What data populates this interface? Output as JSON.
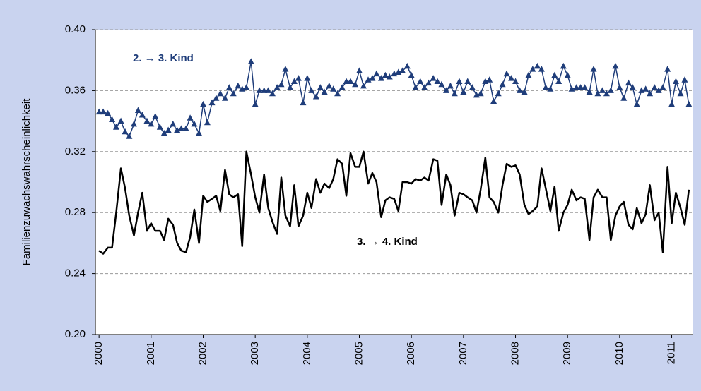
{
  "chart_data": {
    "type": "line",
    "y_label": "Familienzuwachswahrscheinlichkeit",
    "annotations": [
      "2. → 3. Kind",
      "3. → 4. Kind"
    ],
    "xlim": [
      1999.93,
      2011.4
    ],
    "xticks": [
      2000,
      2001,
      2002,
      2003,
      2004,
      2005,
      2006,
      2007,
      2008,
      2009,
      2010,
      2011
    ],
    "ylim": [
      0.2,
      0.4
    ],
    "yticks": [
      {
        "value": 0.2,
        "label": "0.20"
      },
      {
        "value": 0.24,
        "label": "0.24"
      },
      {
        "value": 0.28,
        "label": "0.28"
      },
      {
        "value": 0.32,
        "label": "0.32"
      },
      {
        "value": 0.36,
        "label": "0.36"
      },
      {
        "value": 0.4,
        "label": "0.40"
      }
    ],
    "grid": true,
    "x": [
      2000,
      2000.08,
      2000.17,
      2000.25,
      2000.33,
      2000.42,
      2000.5,
      2000.58,
      2000.67,
      2000.75,
      2000.83,
      2000.92,
      2001,
      2001.08,
      2001.17,
      2001.25,
      2001.33,
      2001.42,
      2001.5,
      2001.58,
      2001.67,
      2001.75,
      2001.83,
      2001.92,
      2002,
      2002.08,
      2002.17,
      2002.25,
      2002.33,
      2002.42,
      2002.5,
      2002.58,
      2002.67,
      2002.75,
      2002.83,
      2002.92,
      2003,
      2003.08,
      2003.17,
      2003.25,
      2003.33,
      2003.42,
      2003.5,
      2003.58,
      2003.67,
      2003.75,
      2003.83,
      2003.92,
      2004,
      2004.08,
      2004.17,
      2004.25,
      2004.33,
      2004.42,
      2004.5,
      2004.58,
      2004.67,
      2004.75,
      2004.83,
      2004.92,
      2005,
      2005.08,
      2005.17,
      2005.25,
      2005.33,
      2005.42,
      2005.5,
      2005.58,
      2005.67,
      2005.75,
      2005.83,
      2005.92,
      2006,
      2006.08,
      2006.17,
      2006.25,
      2006.33,
      2006.42,
      2006.5,
      2006.58,
      2006.67,
      2006.75,
      2006.83,
      2006.92,
      2007,
      2007.08,
      2007.17,
      2007.25,
      2007.33,
      2007.42,
      2007.5,
      2007.58,
      2007.67,
      2007.75,
      2007.83,
      2007.92,
      2008,
      2008.08,
      2008.17,
      2008.25,
      2008.33,
      2008.42,
      2008.5,
      2008.58,
      2008.67,
      2008.75,
      2008.83,
      2008.92,
      2009,
      2009.08,
      2009.17,
      2009.25,
      2009.33,
      2009.42,
      2009.5,
      2009.58,
      2009.67,
      2009.75,
      2009.83,
      2009.92,
      2010,
      2010.08,
      2010.17,
      2010.25,
      2010.33,
      2010.42,
      2010.5,
      2010.58,
      2010.67,
      2010.75,
      2010.83,
      2010.92,
      2011,
      2011.08,
      2011.17,
      2011.25,
      2011.33
    ],
    "series": [
      {
        "color": "#1f3d7a",
        "marker": "triangle",
        "values": [
          0.346,
          0.346,
          0.345,
          0.341,
          0.336,
          0.34,
          0.333,
          0.33,
          0.338,
          0.347,
          0.344,
          0.34,
          0.338,
          0.343,
          0.336,
          0.332,
          0.334,
          0.338,
          0.334,
          0.335,
          0.335,
          0.342,
          0.338,
          0.332,
          0.351,
          0.339,
          0.352,
          0.355,
          0.358,
          0.355,
          0.362,
          0.358,
          0.363,
          0.361,
          0.362,
          0.379,
          0.351,
          0.36,
          0.36,
          0.36,
          0.358,
          0.362,
          0.364,
          0.374,
          0.362,
          0.366,
          0.368,
          0.352,
          0.368,
          0.36,
          0.356,
          0.362,
          0.359,
          0.363,
          0.361,
          0.358,
          0.362,
          0.366,
          0.366,
          0.364,
          0.373,
          0.363,
          0.367,
          0.368,
          0.371,
          0.368,
          0.37,
          0.369,
          0.371,
          0.372,
          0.373,
          0.376,
          0.37,
          0.362,
          0.366,
          0.362,
          0.365,
          0.368,
          0.366,
          0.364,
          0.36,
          0.363,
          0.358,
          0.366,
          0.359,
          0.366,
          0.362,
          0.357,
          0.358,
          0.366,
          0.367,
          0.353,
          0.358,
          0.364,
          0.371,
          0.368,
          0.366,
          0.36,
          0.359,
          0.37,
          0.374,
          0.376,
          0.374,
          0.362,
          0.361,
          0.37,
          0.366,
          0.376,
          0.37,
          0.361,
          0.362,
          0.362,
          0.362,
          0.359,
          0.374,
          0.358,
          0.36,
          0.358,
          0.36,
          0.376,
          0.362,
          0.355,
          0.365,
          0.362,
          0.351,
          0.36,
          0.361,
          0.358,
          0.362,
          0.36,
          0.362,
          0.374,
          0.351,
          0.366,
          0.358,
          0.367,
          0.351
        ]
      },
      {
        "color": "#000000",
        "values": [
          0.255,
          0.253,
          0.257,
          0.257,
          0.28,
          0.309,
          0.296,
          0.278,
          0.265,
          0.28,
          0.293,
          0.268,
          0.273,
          0.268,
          0.268,
          0.262,
          0.276,
          0.272,
          0.26,
          0.255,
          0.254,
          0.264,
          0.282,
          0.26,
          0.291,
          0.287,
          0.289,
          0.291,
          0.281,
          0.308,
          0.292,
          0.29,
          0.292,
          0.258,
          0.32,
          0.305,
          0.29,
          0.28,
          0.305,
          0.283,
          0.274,
          0.266,
          0.303,
          0.278,
          0.271,
          0.298,
          0.271,
          0.278,
          0.293,
          0.283,
          0.302,
          0.293,
          0.299,
          0.296,
          0.302,
          0.315,
          0.312,
          0.291,
          0.319,
          0.31,
          0.31,
          0.32,
          0.299,
          0.306,
          0.3,
          0.277,
          0.288,
          0.29,
          0.289,
          0.281,
          0.3,
          0.3,
          0.299,
          0.302,
          0.301,
          0.303,
          0.301,
          0.315,
          0.314,
          0.285,
          0.305,
          0.298,
          0.278,
          0.293,
          0.292,
          0.29,
          0.288,
          0.28,
          0.295,
          0.316,
          0.29,
          0.287,
          0.28,
          0.298,
          0.312,
          0.31,
          0.311,
          0.305,
          0.285,
          0.279,
          0.281,
          0.284,
          0.309,
          0.296,
          0.281,
          0.297,
          0.268,
          0.28,
          0.285,
          0.295,
          0.288,
          0.29,
          0.289,
          0.262,
          0.29,
          0.295,
          0.29,
          0.29,
          0.262,
          0.278,
          0.284,
          0.287,
          0.272,
          0.269,
          0.283,
          0.273,
          0.279,
          0.298,
          0.275,
          0.28,
          0.254,
          0.31,
          0.273,
          0.293,
          0.283,
          0.272,
          0.295
        ]
      }
    ]
  }
}
